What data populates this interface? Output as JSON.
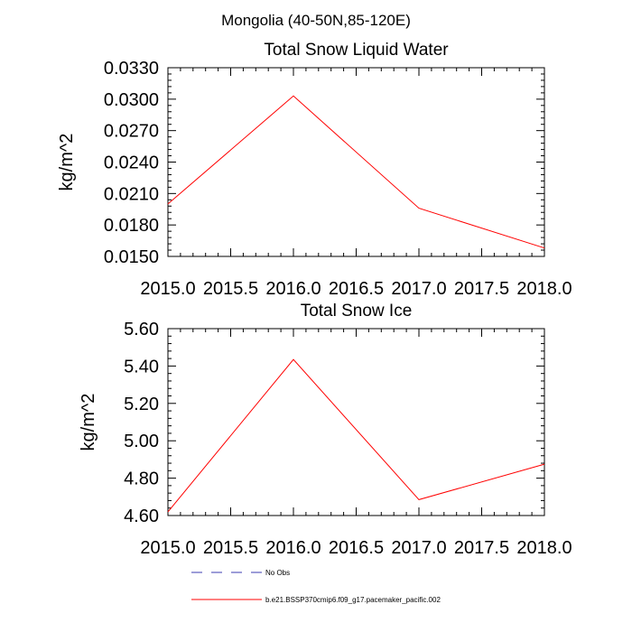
{
  "figure": {
    "suptitle": "Mongolia (40-50N,85-120E)",
    "legend": [
      {
        "label": "No Obs",
        "color": "#3b3bb0",
        "style": "dashed"
      },
      {
        "label": "b.e21.BSSP370cmip6.f09_g17.pacemaker_pacific.002",
        "color": "#ff0000",
        "style": "solid"
      }
    ]
  },
  "chart_data": [
    {
      "type": "line",
      "title": "Total Snow Liquid Water",
      "xlabel": "",
      "ylabel": "kg/m^2",
      "xlim": [
        2015.0,
        2018.0
      ],
      "ylim": [
        0.015,
        0.033
      ],
      "xticks": [
        2015.0,
        2015.5,
        2016.0,
        2016.5,
        2017.0,
        2017.5,
        2018.0
      ],
      "xtick_labels": [
        "2015.0",
        "2015.5",
        "2016.0",
        "2016.5",
        "2017.0",
        "2017.5",
        "2018.0"
      ],
      "yticks": [
        0.015,
        0.018,
        0.021,
        0.024,
        0.027,
        0.03,
        0.033
      ],
      "ytick_labels": [
        "0.0150",
        "0.0180",
        "0.0210",
        "0.0240",
        "0.0270",
        "0.0300",
        "0.0330"
      ],
      "grid": false,
      "series": [
        {
          "color": "#ff0000",
          "x": [
            2015,
            2016,
            2017,
            2018
          ],
          "y": [
            0.02,
            0.0303,
            0.0196,
            0.0158
          ]
        }
      ]
    },
    {
      "type": "line",
      "title": "Total Snow Ice",
      "xlabel": "",
      "ylabel": "kg/m^2",
      "xlim": [
        2015.0,
        2018.0
      ],
      "ylim": [
        4.6,
        5.6
      ],
      "xticks": [
        2015.0,
        2015.5,
        2016.0,
        2016.5,
        2017.0,
        2017.5,
        2018.0
      ],
      "xtick_labels": [
        "2015.0",
        "2015.5",
        "2016.0",
        "2016.5",
        "2017.0",
        "2017.5",
        "2018.0"
      ],
      "yticks": [
        4.6,
        4.8,
        5.0,
        5.2,
        5.4,
        5.6
      ],
      "ytick_labels": [
        "4.60",
        "4.80",
        "5.00",
        "5.20",
        "5.40",
        "5.60"
      ],
      "grid": false,
      "series": [
        {
          "color": "#ff0000",
          "x": [
            2015,
            2016,
            2017,
            2018
          ],
          "y": [
            4.62,
            5.435,
            4.685,
            4.875
          ]
        }
      ]
    }
  ]
}
